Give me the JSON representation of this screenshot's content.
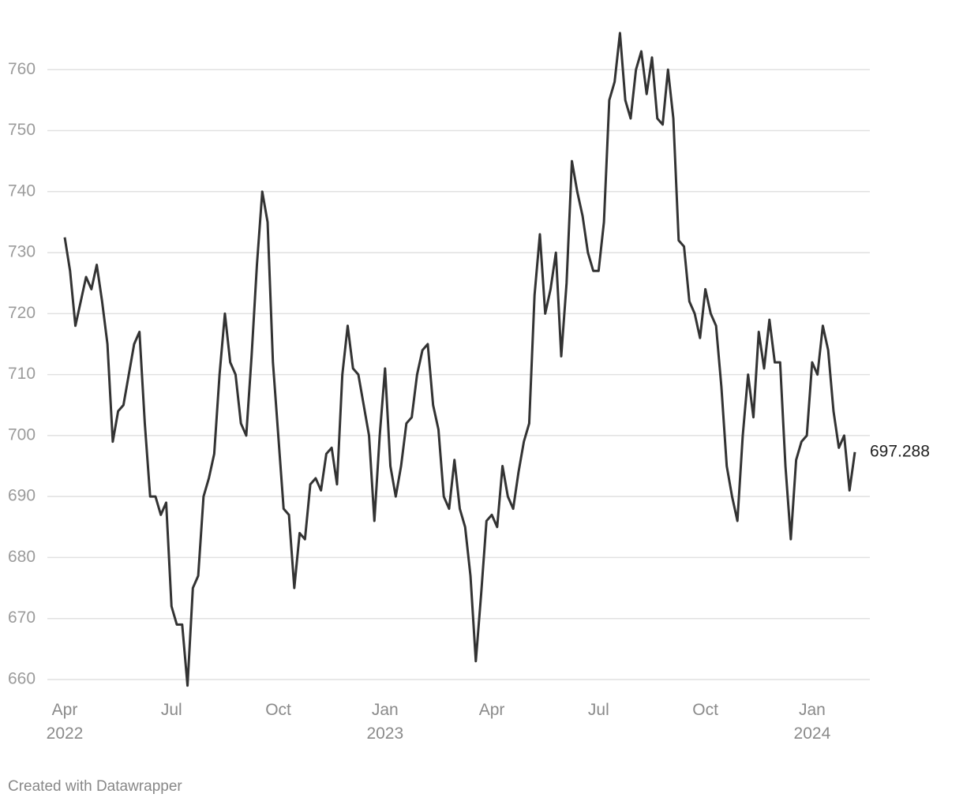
{
  "chart_data": {
    "type": "line",
    "categories": [
      "Apr 2022",
      null,
      null,
      null,
      null,
      null,
      null,
      null,
      null,
      null,
      null,
      null,
      null,
      null,
      null,
      null,
      null,
      null,
      null,
      null,
      "Jul",
      null,
      null,
      null,
      null,
      null,
      null,
      null,
      null,
      null,
      null,
      null,
      null,
      null,
      null,
      null,
      null,
      null,
      null,
      null,
      "Oct",
      null,
      null,
      null,
      null,
      null,
      null,
      null,
      null,
      null,
      null,
      null,
      null,
      null,
      null,
      null,
      null,
      null,
      null,
      null,
      "Jan 2023",
      null,
      null,
      null,
      null,
      null,
      null,
      null,
      null,
      null,
      null,
      null,
      null,
      null,
      null,
      null,
      null,
      null,
      null,
      null,
      "Apr",
      null,
      null,
      null,
      null,
      null,
      null,
      null,
      null,
      null,
      null,
      null,
      null,
      null,
      null,
      null,
      null,
      null,
      null,
      null,
      "Jul",
      null,
      null,
      null,
      null,
      null,
      null,
      null,
      null,
      null,
      null,
      null,
      null,
      null,
      null,
      null,
      null,
      null,
      null,
      null,
      "Oct",
      null,
      null,
      null,
      null,
      null,
      null,
      null,
      null,
      null,
      null,
      null,
      null,
      null,
      null,
      null,
      null,
      null,
      null,
      null,
      "Jan 2024",
      null,
      null,
      null,
      null,
      null,
      null,
      null,
      null
    ],
    "series": [
      {
        "color": "#333333",
        "values": [
          732.5,
          727,
          718,
          722,
          726,
          724,
          728,
          722,
          715,
          699,
          704,
          705,
          710,
          715,
          717,
          702,
          690,
          690,
          687,
          689,
          672,
          669,
          669,
          659,
          675,
          677,
          690,
          693,
          697,
          710,
          720,
          712,
          710,
          702,
          700,
          713,
          728,
          740,
          735,
          712,
          700,
          688,
          687,
          675,
          684,
          683,
          692,
          693,
          691,
          697,
          698,
          692,
          710,
          718,
          711,
          710,
          705,
          700,
          686,
          700,
          711,
          695,
          690,
          695,
          702,
          703,
          710,
          714,
          715,
          705,
          701,
          690,
          688,
          696,
          688,
          685,
          677,
          663,
          674,
          686,
          687,
          685,
          695,
          690,
          688,
          694,
          699,
          702,
          723,
          733,
          720,
          724,
          730,
          713,
          725,
          745,
          740,
          736,
          730,
          727,
          727,
          735,
          755,
          758,
          766,
          755,
          752,
          760,
          763,
          756,
          762,
          752,
          751,
          760,
          752,
          732,
          731,
          722,
          720,
          716,
          724,
          720,
          718,
          708,
          695,
          690,
          686,
          700,
          710,
          703,
          717,
          711,
          719,
          712,
          712,
          695,
          683,
          696,
          699,
          700,
          712,
          710,
          718,
          714,
          704,
          698,
          700,
          691,
          697.288
        ]
      }
    ],
    "ylim": [
      655,
      770
    ],
    "yticks": [
      660,
      670,
      680,
      690,
      700,
      710,
      720,
      730,
      740,
      750,
      760
    ],
    "grid": true,
    "footer": "Created with Datawrapper"
  }
}
